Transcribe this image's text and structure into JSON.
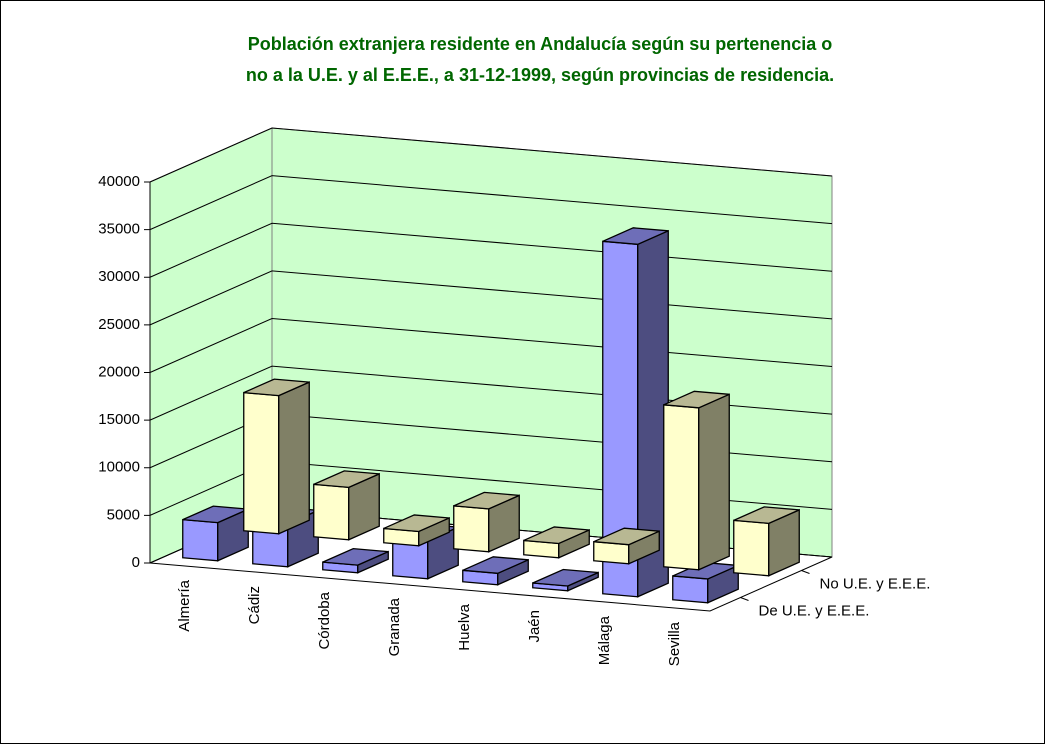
{
  "chart_data": {
    "type": "bar3d",
    "title": [
      "Población extranjera residente en Andalucía según su pertenencia o",
      "no a la U.E. y al E.E.E., a 31-12-1999, según provincias de residencia."
    ],
    "categories": [
      "Almería",
      "Cádiz",
      "Córdoba",
      "Granada",
      "Huelva",
      "Jaén",
      "Málaga",
      "Sevilla"
    ],
    "series": [
      {
        "name": "No U.E. y E.E.E.",
        "color": "#FFFFCC",
        "values": [
          14500,
          5500,
          1500,
          4500,
          1500,
          2000,
          17000,
          5500
        ]
      },
      {
        "name": "De U.E. y E.E.E.",
        "color": "#9999FF",
        "values": [
          4000,
          4500,
          800,
          4000,
          1200,
          500,
          37000,
          2500
        ]
      }
    ],
    "ylim": [
      0,
      40000
    ],
    "yticks": [
      0,
      5000,
      10000,
      15000,
      20000,
      25000,
      30000,
      35000,
      40000
    ],
    "grid": true,
    "wall_color": "#CCFFCC"
  }
}
